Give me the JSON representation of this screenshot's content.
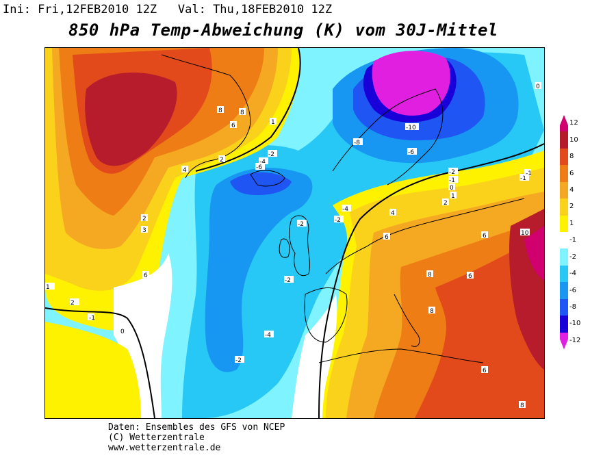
{
  "header": {
    "init": "Ini: Fri,12FEB2010 12Z",
    "valid": "Val: Thu,18FEB2010 12Z"
  },
  "title": "850 hPa Temp-Abweichung (K) vom 30J-Mittel",
  "credits": [
    "Daten: Ensembles des GFS von NCEP",
    "(C) Wetterzentrale",
    "www.wetterzentrale.de"
  ],
  "legend": {
    "labels": [
      "12",
      "10",
      "8",
      "6",
      "4",
      "2",
      "1",
      "-1",
      "-2",
      "-4",
      "-6",
      "-8",
      "-10",
      "-12"
    ],
    "colors": [
      "#d0006f",
      "#b71c2c",
      "#e24a1c",
      "#ee7d16",
      "#f5a821",
      "#fbd21b",
      "#fff200",
      "#ffffff",
      "#7ff3ff",
      "#27c8f5",
      "#1797f2",
      "#1f55f2",
      "#1900d8",
      "#e11fe0"
    ]
  },
  "contour_labels": [
    {
      "text": "8"
    },
    {
      "text": "8"
    },
    {
      "text": "6"
    },
    {
      "text": "4"
    },
    {
      "text": "2"
    },
    {
      "text": "1"
    },
    {
      "text": "-2"
    },
    {
      "text": "-4"
    },
    {
      "text": "-6"
    },
    {
      "text": "-8"
    },
    {
      "text": "-10"
    },
    {
      "text": "-6"
    },
    {
      "text": "-2"
    },
    {
      "text": "-1"
    },
    {
      "text": "0"
    },
    {
      "text": "1"
    },
    {
      "text": "2"
    },
    {
      "text": "4"
    },
    {
      "text": "6"
    },
    {
      "text": "8"
    },
    {
      "text": "10"
    },
    {
      "text": "6"
    },
    {
      "text": "8"
    },
    {
      "text": "6"
    },
    {
      "text": "-2"
    },
    {
      "text": "-4"
    },
    {
      "text": "-2"
    },
    {
      "text": "-1"
    },
    {
      "text": "-1"
    },
    {
      "text": "2"
    },
    {
      "text": "3"
    },
    {
      "text": "6"
    },
    {
      "text": "2"
    },
    {
      "text": "-1"
    },
    {
      "text": "0"
    },
    {
      "text": "1"
    },
    {
      "text": "-2"
    },
    {
      "text": "-4"
    },
    {
      "text": "-2"
    },
    {
      "text": "6"
    },
    {
      "text": "8"
    },
    {
      "text": "0"
    }
  ]
}
